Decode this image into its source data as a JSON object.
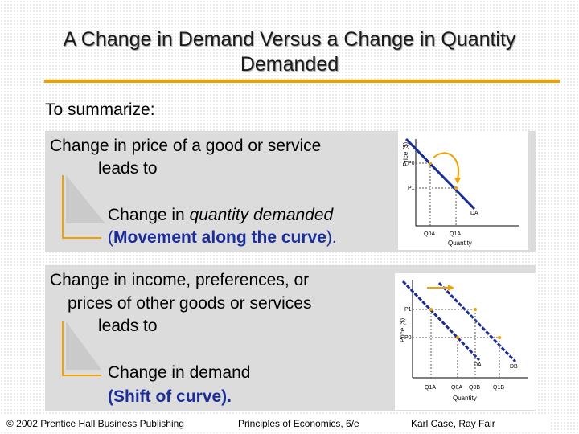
{
  "slide": {
    "title_line1": "A Change in Demand Versus a Change in Quantity",
    "title_line2": "Demanded",
    "summarize": "To summarize:"
  },
  "panel1": {
    "line1": "Change in price of a good or service",
    "line2": "leads to",
    "result_prefix": "Change in ",
    "result_italic": "quantity demanded",
    "result_line2_open": "(",
    "result_line2_bold": "Movement along the curve",
    "result_line2_close": ").",
    "graph": {
      "ylabel": "Price ($)",
      "xlabel": "Quantity",
      "p0": "P0",
      "p1": "P1",
      "q0": "Q0A",
      "q1": "Q1A",
      "curve": "DA"
    }
  },
  "panel2": {
    "line1": "Change in income, preferences, or",
    "line2": "prices of other goods or services",
    "line3": "leads to",
    "result_line1": "Change in demand",
    "result_line2": "(Shift of curve).",
    "graph": {
      "ylabel": "Price ($)",
      "xlabel": "Quantity",
      "p1": "P1",
      "p0": "P0",
      "q1a": "Q1A",
      "q0a": "Q0A",
      "q0b": "Q0B",
      "q1b": "Q1B",
      "curve_a": "DA",
      "curve_b": "DB"
    }
  },
  "footer": {
    "left": "© 2002 Prentice Hall Business Publishing",
    "center": "Principles of Economics, 6/e",
    "right": "Karl Case, Ray Fair"
  },
  "colors": {
    "accent": "#f0a000",
    "curve": "#1b2d9a",
    "text_blue": "#1b2d9a",
    "panel": "#dcdcdc"
  }
}
